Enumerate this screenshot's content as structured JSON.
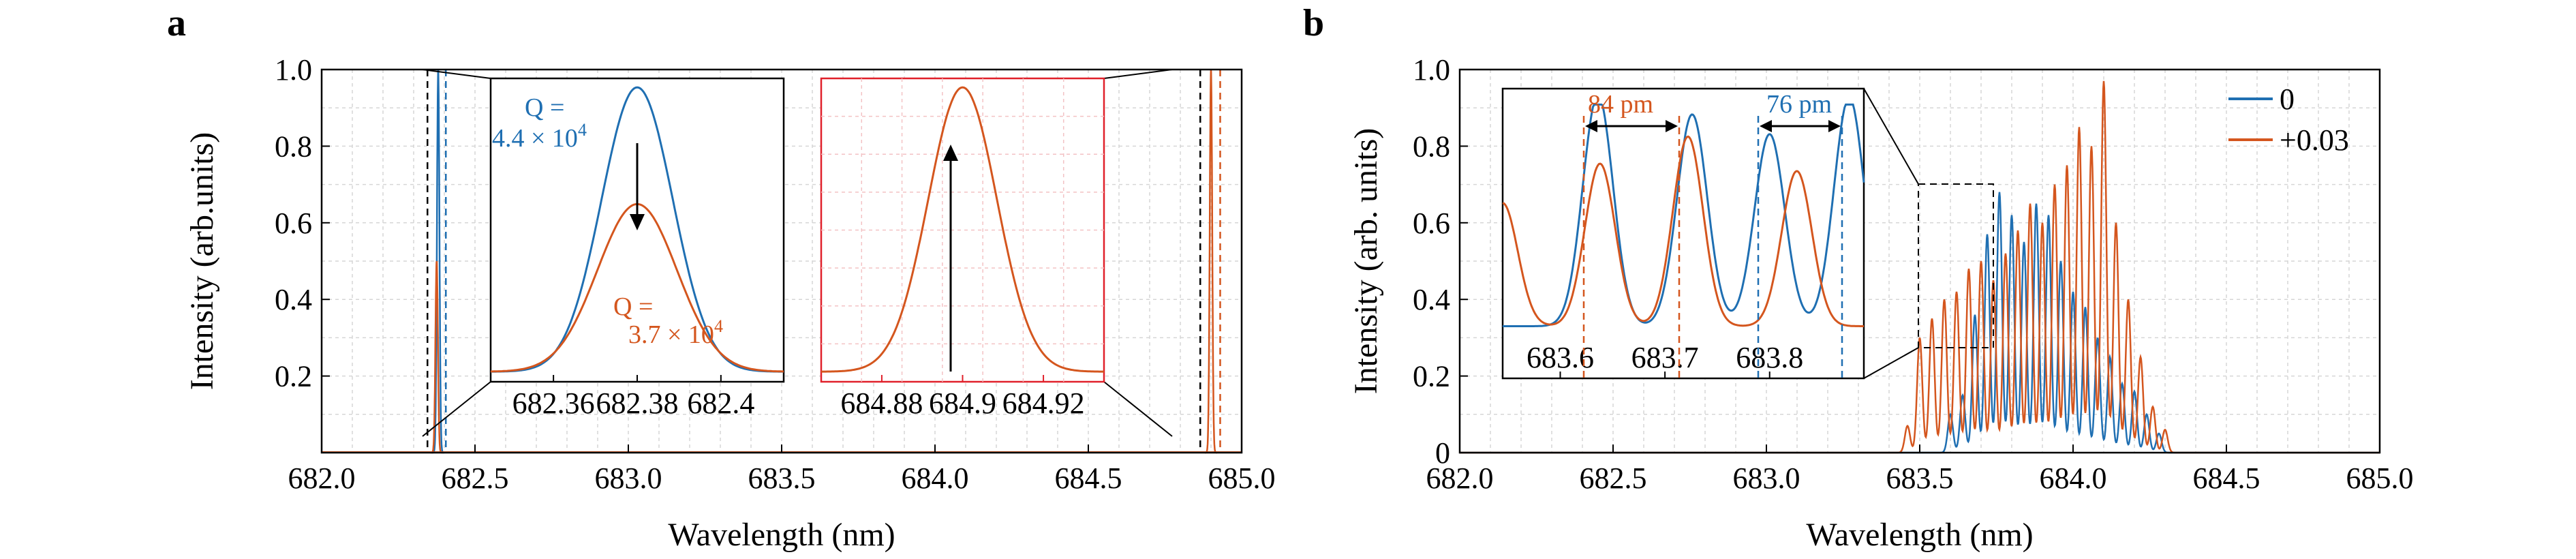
{
  "colors": {
    "blue": "#1f6fb2",
    "orange": "#d4561e",
    "red": "#e0202a"
  },
  "chart_data": [
    {
      "panel_label": "a",
      "type": "line",
      "xlabel": "Wavelength (nm)",
      "ylabel": "Intensity (arb.units)",
      "xlim": [
        682.0,
        685.0
      ],
      "ylim": [
        0,
        1.0
      ],
      "x_ticks": [
        "682.0",
        "682.5",
        "683.0",
        "683.5",
        "684.0",
        "684.5",
        "685.0"
      ],
      "y_ticks": [
        "0.2",
        "0.4",
        "0.6",
        "0.8",
        "1.0"
      ],
      "grid": true,
      "peaks": [
        {
          "x": 682.38,
          "blue": 1.0,
          "orange": 0.52
        },
        {
          "x": 684.9,
          "blue": 0.0,
          "orange": 1.0
        }
      ],
      "insets": [
        {
          "id": "inset-left",
          "x_ticks": [
            "682.36",
            "682.38",
            "682.4"
          ],
          "xlim": [
            682.345,
            682.415
          ],
          "series": [
            {
              "color": "blue",
              "center": 682.38,
              "height": 0.97,
              "width": 0.0085
            },
            {
              "color": "orange",
              "center": 682.38,
              "height": 0.58,
              "width": 0.0095
            }
          ],
          "annotations": [
            {
              "id": "q-blue-1",
              "text": "Q =",
              "color": "blue"
            },
            {
              "id": "q-blue-2",
              "text": "4.4 × 10",
              "sup": "4",
              "color": "blue"
            },
            {
              "id": "q-orange-1",
              "text": "Q =",
              "color": "orange"
            },
            {
              "id": "q-orange-2",
              "text": "3.7 × 10",
              "sup": "4",
              "color": "orange"
            }
          ]
        },
        {
          "id": "inset-right",
          "x_ticks": [
            "684.88",
            "684.9",
            "684.92"
          ],
          "xlim": [
            684.865,
            684.935
          ],
          "series": [
            {
              "color": "orange",
              "center": 684.9,
              "height": 0.97,
              "width": 0.0085
            }
          ]
        }
      ]
    },
    {
      "panel_label": "b",
      "type": "line",
      "xlabel": "Wavelength (nm)",
      "ylabel": "Intensity (arb. units)",
      "xlim": [
        682.0,
        685.0
      ],
      "ylim": [
        0,
        1.0
      ],
      "x_ticks": [
        "682.0",
        "682.5",
        "683.0",
        "683.5",
        "684.0",
        "684.5",
        "685.0"
      ],
      "y_ticks": [
        "0",
        "0.2",
        "0.4",
        "0.6",
        "0.8",
        "1.0"
      ],
      "grid": true,
      "legend": {
        "placement": "top-right",
        "entries": [
          {
            "name": "0",
            "color": "blue"
          },
          {
            "name": "+0.03",
            "color": "orange"
          }
        ]
      },
      "series": [
        {
          "name": "0",
          "color": "blue",
          "peak_x": [
            683.6,
            683.64,
            683.68,
            683.72,
            683.76,
            683.8,
            683.84,
            683.88,
            683.92,
            683.96,
            684.0,
            684.04,
            684.08,
            684.12,
            684.16,
            684.2,
            684.24,
            684.28
          ],
          "peak_y": [
            0.1,
            0.15,
            0.36,
            0.57,
            0.68,
            0.62,
            0.55,
            0.65,
            0.62,
            0.5,
            0.42,
            0.38,
            0.3,
            0.25,
            0.18,
            0.16,
            0.1,
            0.05
          ]
        },
        {
          "name": "+0.03",
          "color": "orange",
          "peak_x": [
            683.46,
            683.5,
            683.54,
            683.58,
            683.62,
            683.66,
            683.7,
            683.74,
            683.78,
            683.82,
            683.86,
            683.9,
            683.94,
            683.98,
            684.02,
            684.06,
            684.1,
            684.14,
            684.18,
            684.22,
            684.26,
            684.3
          ],
          "peak_y": [
            0.07,
            0.3,
            0.35,
            0.4,
            0.42,
            0.48,
            0.5,
            0.45,
            0.52,
            0.58,
            0.65,
            0.6,
            0.7,
            0.75,
            0.85,
            0.8,
            0.97,
            0.6,
            0.4,
            0.25,
            0.12,
            0.06
          ]
        }
      ],
      "inset": {
        "x_ticks": [
          "683.6",
          "683.7",
          "683.8"
        ],
        "xlim": [
          683.545,
          683.89
        ],
        "ylim": [
          0,
          1.0
        ],
        "series": [
          {
            "color": "blue",
            "peak_x": [
              683.636,
              683.726,
              683.8,
              683.876
            ],
            "peak_y": [
              0.94,
              0.86,
              0.78,
              0.93
            ]
          },
          {
            "color": "orange",
            "peak_x": [
              683.545,
              683.638,
              683.722,
              683.826
            ],
            "peak_y": [
              0.5,
              0.66,
              0.77,
              0.63
            ]
          }
        ],
        "annotations": [
          {
            "id": "pm-84",
            "text": "84 pm",
            "color": "orange"
          },
          {
            "id": "pm-76",
            "text": "76 pm",
            "color": "blue"
          }
        ]
      }
    }
  ]
}
